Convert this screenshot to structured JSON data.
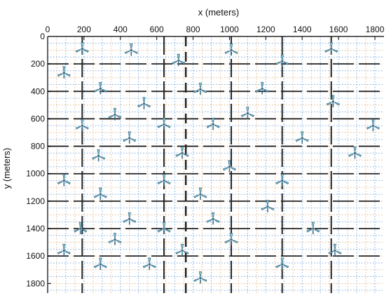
{
  "chart_data": {
    "type": "scatter",
    "title": "",
    "xlabel": "x (meters)",
    "ylabel": "y (meters)",
    "x_axis_position": "top",
    "y_axis_reversed": true,
    "xlim": [
      0,
      1850
    ],
    "ylim": [
      0,
      1870
    ],
    "xticks": [
      0,
      200,
      400,
      600,
      800,
      1000,
      1200,
      1400,
      1600,
      1800
    ],
    "xtick_labels": [
      "0",
      "200",
      "400",
      "600",
      "800",
      "1000",
      "1200",
      "1400",
      "1600",
      "1800"
    ],
    "yticks": [
      0,
      200,
      400,
      600,
      800,
      1000,
      1200,
      1400,
      1600,
      1800
    ],
    "ytick_labels": [
      "0",
      "200",
      "400",
      "600",
      "800",
      "1000",
      "1200",
      "1400",
      "1600",
      "1800"
    ],
    "grid": true,
    "marker": "wind-turbine-icon",
    "colors": {
      "axis": "#000000",
      "heavy_line": "#222222",
      "dotted_blue": "#4a8fd6",
      "dotted_orange": "#e0a060",
      "turbine": "#3a6f8a",
      "turbine_light": "#8fd0d8"
    },
    "points": [
      {
        "x": 190,
        "y": 90
      },
      {
        "x": 460,
        "y": 100
      },
      {
        "x": 720,
        "y": 175
      },
      {
        "x": 1010,
        "y": 100
      },
      {
        "x": 1290,
        "y": 180
      },
      {
        "x": 1560,
        "y": 90
      },
      {
        "x": 90,
        "y": 265
      },
      {
        "x": 290,
        "y": 380
      },
      {
        "x": 840,
        "y": 385
      },
      {
        "x": 1180,
        "y": 380
      },
      {
        "x": 1570,
        "y": 475
      },
      {
        "x": 530,
        "y": 490
      },
      {
        "x": 370,
        "y": 570
      },
      {
        "x": 1100,
        "y": 560
      },
      {
        "x": 190,
        "y": 650
      },
      {
        "x": 640,
        "y": 640
      },
      {
        "x": 910,
        "y": 640
      },
      {
        "x": 1400,
        "y": 740
      },
      {
        "x": 1790,
        "y": 650
      },
      {
        "x": 450,
        "y": 740
      },
      {
        "x": 280,
        "y": 870
      },
      {
        "x": 740,
        "y": 850
      },
      {
        "x": 1690,
        "y": 850
      },
      {
        "x": 1000,
        "y": 950
      },
      {
        "x": 90,
        "y": 1050
      },
      {
        "x": 640,
        "y": 1050
      },
      {
        "x": 1290,
        "y": 1050
      },
      {
        "x": 290,
        "y": 1150
      },
      {
        "x": 840,
        "y": 1150
      },
      {
        "x": 1210,
        "y": 1240
      },
      {
        "x": 450,
        "y": 1330
      },
      {
        "x": 910,
        "y": 1330
      },
      {
        "x": 180,
        "y": 1400
      },
      {
        "x": 640,
        "y": 1400
      },
      {
        "x": 1460,
        "y": 1400
      },
      {
        "x": 370,
        "y": 1480
      },
      {
        "x": 1010,
        "y": 1480
      },
      {
        "x": 90,
        "y": 1560
      },
      {
        "x": 740,
        "y": 1560
      },
      {
        "x": 1580,
        "y": 1560
      },
      {
        "x": 290,
        "y": 1660
      },
      {
        "x": 560,
        "y": 1660
      },
      {
        "x": 1290,
        "y": 1660
      },
      {
        "x": 840,
        "y": 1760
      }
    ]
  }
}
